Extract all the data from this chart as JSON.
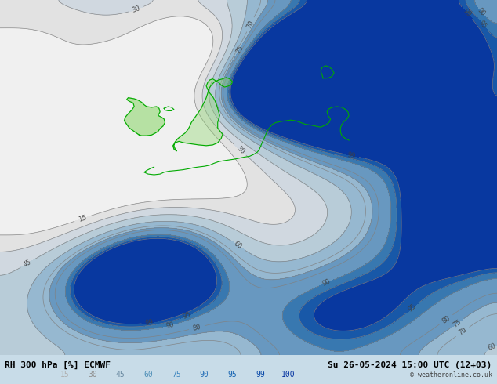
{
  "title_left": "RH 300 hPa [%] ECMWF",
  "title_right": "Su 26-05-2024 15:00 UTC (12+03)",
  "copyright": "© weatheronline.co.uk",
  "colorbar_levels": [
    15,
    30,
    45,
    60,
    75,
    90,
    95,
    99,
    100
  ],
  "contour_levels": [
    30,
    60,
    70,
    80,
    90,
    95
  ],
  "filled_levels": [
    0,
    15,
    30,
    45,
    60,
    75,
    90,
    95,
    99,
    105
  ],
  "filled_colors": [
    "#f0f0f0",
    "#e2e2e2",
    "#d0d8e0",
    "#b8ccd8",
    "#96b8d0",
    "#6898c0",
    "#3878b0",
    "#1858a8",
    "#0838a0"
  ],
  "contour_color": "#808080",
  "background_color": "#c8dce8",
  "land_green": "#90d870",
  "land_outline": "#00aa00",
  "figsize": [
    6.34,
    4.9
  ],
  "dpi": 100,
  "label_fontsize": 7,
  "title_fontsize": 8
}
